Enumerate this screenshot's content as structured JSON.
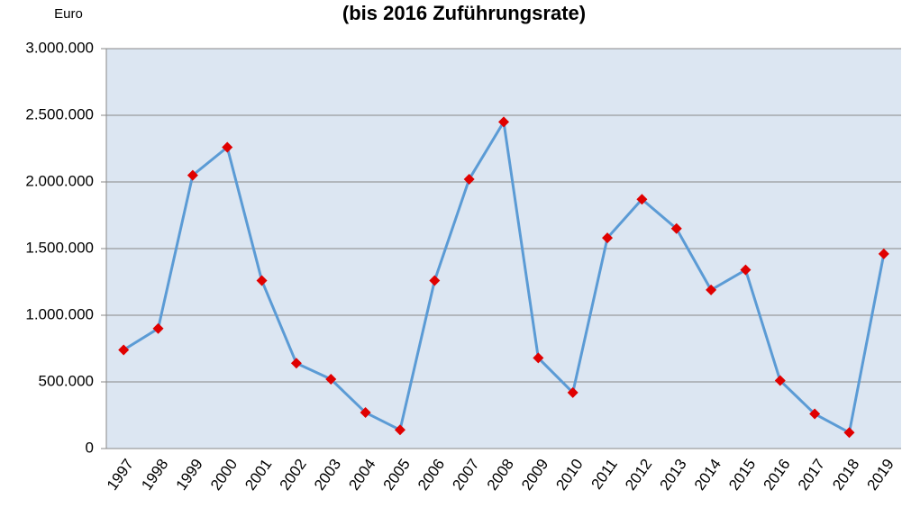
{
  "chart_data": {
    "type": "line",
    "title": "(bis 2016 Zuführungsrate)",
    "y_label": "Euro",
    "categories": [
      "1997",
      "1998",
      "1999",
      "2000",
      "2001",
      "2002",
      "2003",
      "2004",
      "2005",
      "2006",
      "2007",
      "2008",
      "2009",
      "2010",
      "2011",
      "2012",
      "2013",
      "2014",
      "2015",
      "2016",
      "2017",
      "2018",
      "2019"
    ],
    "series": [
      {
        "name": "Euro",
        "color": "#5b9bd5",
        "marker_color": "#e00000",
        "values": [
          740000,
          900000,
          2050000,
          2260000,
          1260000,
          640000,
          520000,
          270000,
          140000,
          1260000,
          2020000,
          2450000,
          680000,
          420000,
          1580000,
          1870000,
          1650000,
          1190000,
          1340000,
          510000,
          260000,
          120000,
          1460000
        ]
      }
    ],
    "ylim": [
      0,
      3000000
    ],
    "yticks": [
      0,
      {
        "value": 500000,
        "label": "500.000"
      },
      {
        "value": 1000000,
        "label": "1.000.000"
      },
      {
        "value": 1500000,
        "label": "1.500.000"
      },
      {
        "value": 2000000,
        "label": "2.000.000"
      },
      {
        "value": 2500000,
        "label": "2.500.000"
      },
      {
        "value": 3000000,
        "label": "3.000.000"
      }
    ],
    "grid": true,
    "plot_background": "#dce6f2"
  }
}
